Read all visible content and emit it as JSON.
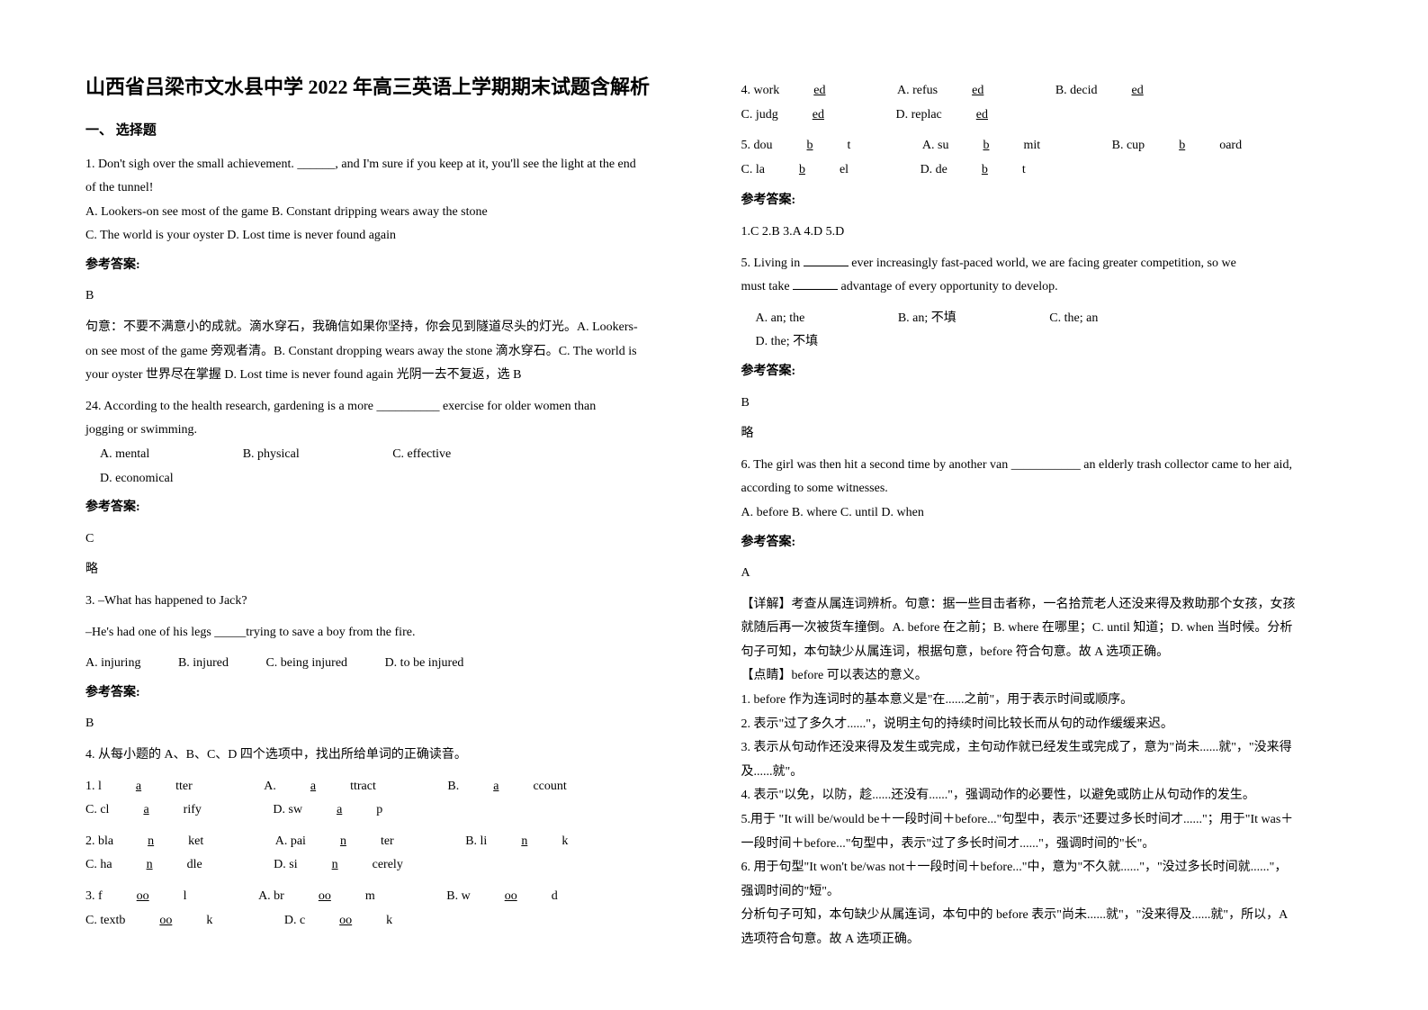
{
  "title": "山西省吕梁市文水县中学 2022 年高三英语上学期期末试题含解析",
  "section1": "一、 选择题",
  "answer_label": "参考答案:",
  "lue": "略",
  "left": {
    "q1": {
      "line1": "1. Don't sigh over the small achievement. ______, and I'm sure if you keep at it, you'll see the light at the end",
      "line2": "of the tunnel!",
      "optA": "A. Lookers-on see most of the game  B. Constant dripping wears away the stone",
      "optC": "C. The world is your oyster        D. Lost time is never found again",
      "ans": "B",
      "exp1": "句意：不要不满意小的成就。滴水穿石，我确信如果你坚持，你会见到隧道尽头的灯光。A. Lookers-",
      "exp2": "on see most of the game 旁观者清。B. Constant dropping wears away the stone 滴水穿石。C. The world is",
      "exp3": "your oyster 世界尽在掌握 D. Lost time is never found again 光阴一去不复返，选 B"
    },
    "q24": {
      "line1": "24. According to the health research, gardening is a more __________ exercise for older women than",
      "line2": "jogging or swimming.",
      "A": "A.  mental",
      "B": "B.  physical",
      "C": "C.  effective",
      "D": "D.  economical",
      "ans": "C"
    },
    "q3": {
      "line1": "3. –What has happened to Jack?",
      "line2": "–He's had one of his legs _____trying to save a boy from the fire.",
      "A": "A. injuring",
      "B": "B. injured",
      "C": "C. being injured",
      "D": "D. to be injured",
      "ans": "B"
    },
    "q4": {
      "intro": "4. 从每小题的 A、B、C、D 四个选项中，找出所给单词的正确读音。",
      "i1_word": "1. l",
      "i1_u": "a",
      "i1_word2": "tter",
      "i1A": "A. ",
      "i1Au": "a",
      "i1A2": "ttract",
      "i1B": "B. ",
      "i1Bu": "a",
      "i1B2": "ccount",
      "i1C": "C. cl",
      "i1Cu": "a",
      "i1C2": "rify",
      "i1D": "D. sw",
      "i1Du": "a",
      "i1D2": "p",
      "i2_word": "2. bla",
      "i2_u": "n",
      "i2_word2": "ket",
      "i2A": "A. pai",
      "i2Au": "n",
      "i2A2": "ter",
      "i2B": "B. li",
      "i2Bu": "n",
      "i2B2": "k",
      "i2C": "C. ha",
      "i2Cu": "n",
      "i2C2": "dle",
      "i2D": "D. si",
      "i2Du": "n",
      "i2D2": "cerely",
      "i3_word": "3. f",
      "i3_u": "oo",
      "i3_word2": "l",
      "i3A": "A. br",
      "i3Au": "oo",
      "i3A2": "m",
      "i3B": "B. w",
      "i3Bu": "oo",
      "i3B2": "d",
      "i3C": "C. textb",
      "i3Cu": "oo",
      "i3C2": "k",
      "i3D": "D. c",
      "i3Du": "oo",
      "i3D2": "k"
    }
  },
  "right": {
    "q4cont": {
      "i4_word": "4. work",
      "i4_u": "ed",
      "i4_word2": "",
      "i4A": "A. refus",
      "i4Au": "ed",
      "i4A2": "",
      "i4B": "B. decid",
      "i4Bu": "ed",
      "i4B2": "",
      "i4C": "C. judg",
      "i4Cu": "ed",
      "i4C2": "",
      "i4D": "D. replac",
      "i4Du": "ed",
      "i4D2": "",
      "i5_word": "5. dou",
      "i5_u": "b",
      "i5_word2": "t",
      "i5A": "A. su",
      "i5Au": "b",
      "i5A2": "mit",
      "i5B": "B. cup",
      "i5Bu": "b",
      "i5B2": "oard",
      "i5C": "C. la",
      "i5Cu": "b",
      "i5C2": "el",
      "i5D": "D. de",
      "i5Du": "b",
      "i5D2": "t",
      "ans": "1.C   2.B   3.A   4.D   5.D"
    },
    "q5": {
      "line1a": "5. Living in ",
      "line1b": " ever increasingly fast-paced world, we are facing greater competition, so we",
      "line2a": "must take ",
      "line2b": " advantage of every opportunity to develop.",
      "A": "A. an; the",
      "B": "B. an; 不填",
      "C": "C. the; an",
      "D": "D. the; 不填",
      "ans": "B"
    },
    "q6": {
      "line1": "6. The girl was then hit a second time by another van ___________ an elderly trash collector came to her aid,",
      "line2": "according to some witnesses.",
      "opts": "A. before   B. where   C. until   D. when",
      "ans": "A",
      "exp1": "【详解】考查从属连词辨析。句意：据一些目击者称，一名拾荒老人还没来得及救助那个女孩，女孩",
      "exp2": "就随后再一次被货车撞倒。A. before 在之前；B. where 在哪里；C. until 知道；D. when 当时候。分析",
      "exp3": "句子可知，本句缺少从属连词，根据句意，before 符合句意。故 A 选项正确。",
      "dt": "【点睛】before 可以表达的意义。",
      "p1": "1. before 作为连词时的基本意义是\"在......之前\"，用于表示时间或顺序。",
      "p2": "2. 表示\"过了多久才......\"，说明主句的持续时间比较长而从句的动作缓缓来迟。",
      "p3": "3. 表示从句动作还没来得及发生或完成，主句动作就已经发生或完成了，意为\"尚未......就\"，\"没来得",
      "p3b": "及......就\"。",
      "p4": "4. 表示\"以免，以防，趁......还没有......\"，强调动作的必要性，以避免或防止从句动作的发生。",
      "p5": "5.用于 \"It will be/would be＋一段时间＋before...\"句型中，表示\"还要过多长时间才......\"；用于\"It was＋",
      "p5b": "一段时间＋before...\"句型中，表示\"过了多长时间才......\"，强调时间的\"长\"。",
      "p6": "6. 用于句型\"It won't be/was not＋一段时间＋before...\"中，意为\"不久就......\"，\"没过多长时间就......\"，",
      "p6b": "强调时间的\"短\"。",
      "p7": "分析句子可知，本句缺少从属连词，本句中的 before 表示\"尚未......就\"，\"没来得及......就\"，所以，A",
      "p7b": "选项符合句意。故 A 选项正确。"
    }
  }
}
